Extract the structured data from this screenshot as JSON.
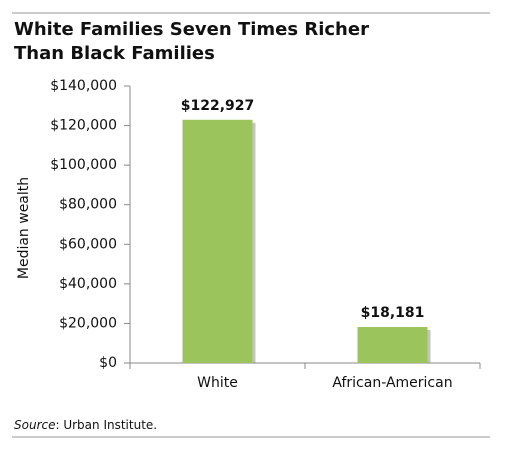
{
  "chart_data": {
    "type": "bar",
    "title": "White Families Seven Times Richer Than Black Families",
    "y_label": "Median wealth",
    "categories": [
      "White",
      "African-American"
    ],
    "values": [
      122927,
      18181
    ],
    "value_labels": [
      "$122,927",
      "$18,181"
    ],
    "color": "#9bc45c",
    "ylim": [
      0,
      140000
    ],
    "yticks": [
      {
        "value": 0,
        "label": "$0"
      },
      {
        "value": 20000,
        "label": "$20,000"
      },
      {
        "value": 40000,
        "label": "$40,000"
      },
      {
        "value": 60000,
        "label": "$60,000"
      },
      {
        "value": 80000,
        "label": "$80,000"
      },
      {
        "value": 100000,
        "label": "$100,000"
      },
      {
        "value": 120000,
        "label": "$120,000"
      },
      {
        "value": 140000,
        "label": "$140,000"
      }
    ],
    "grid": false,
    "source_label": "Source",
    "source_text": ": Urban Institute."
  }
}
